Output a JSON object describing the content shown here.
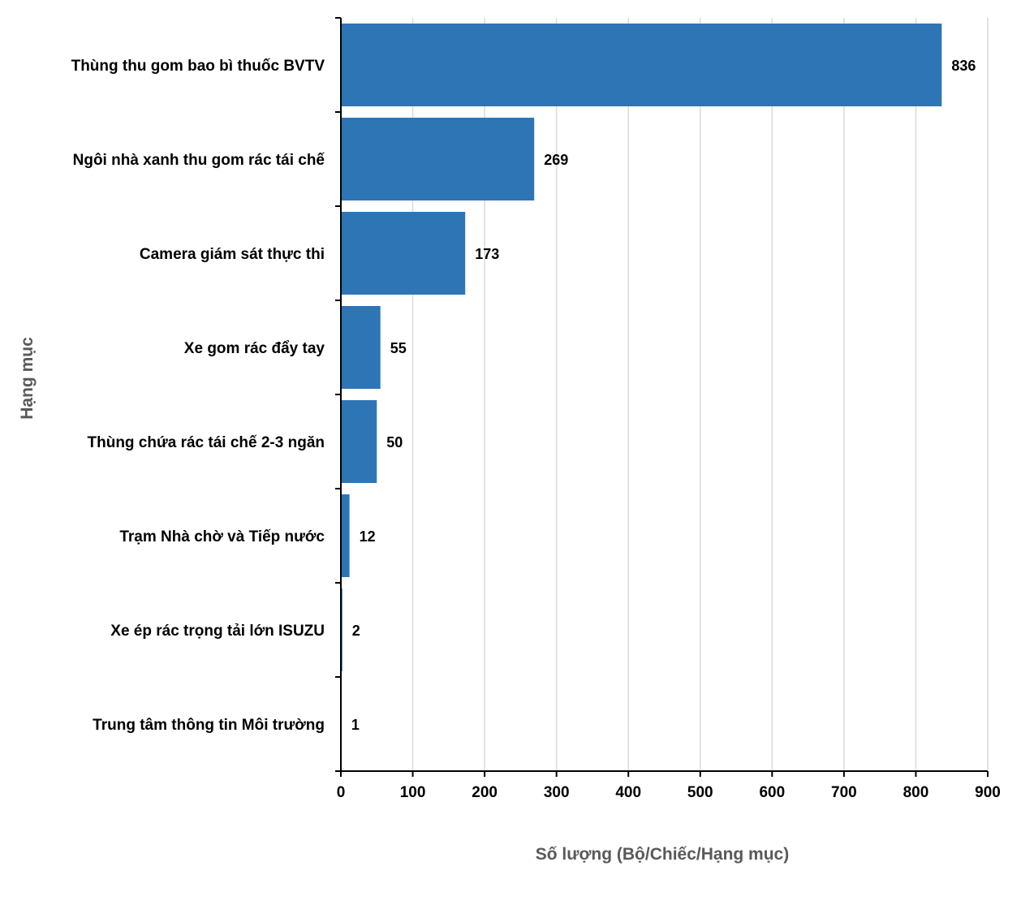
{
  "chart_data": {
    "type": "bar",
    "orientation": "horizontal",
    "title": "",
    "xlabel": "Số lượng (Bộ/Chiếc/Hạng mục)",
    "ylabel": "Hạng mục",
    "categories": [
      "Thùng thu gom bao bì thuốc BVTV",
      "Ngôi nhà xanh thu gom rác tái chế",
      "Camera giám sát thực thi",
      "Xe gom rác đẩy tay",
      "Thùng  chứa rác tái chế 2-3 ngăn",
      "Trạm Nhà chờ và Tiếp nước",
      "Xe ép rác trọng tải lớn ISUZU",
      "Trung tâm thông tin Môi trường"
    ],
    "values": [
      836,
      269,
      173,
      55,
      50,
      12,
      2,
      1
    ],
    "value_labels": [
      "836",
      "269",
      "173",
      "55",
      "50",
      "12",
      "2",
      "1"
    ],
    "xlim": [
      0,
      900
    ],
    "xticks": [
      0,
      100,
      200,
      300,
      400,
      500,
      600,
      700,
      800,
      900
    ],
    "xtick_labels": [
      "0",
      "100",
      "200",
      "300",
      "400",
      "500",
      "600",
      "700",
      "800",
      "900"
    ],
    "grid": "vertical",
    "colors": {
      "bar": "#2e75b6",
      "grid": "#d9d9d9",
      "axis": "#000000",
      "axis_title": "#595959"
    }
  }
}
